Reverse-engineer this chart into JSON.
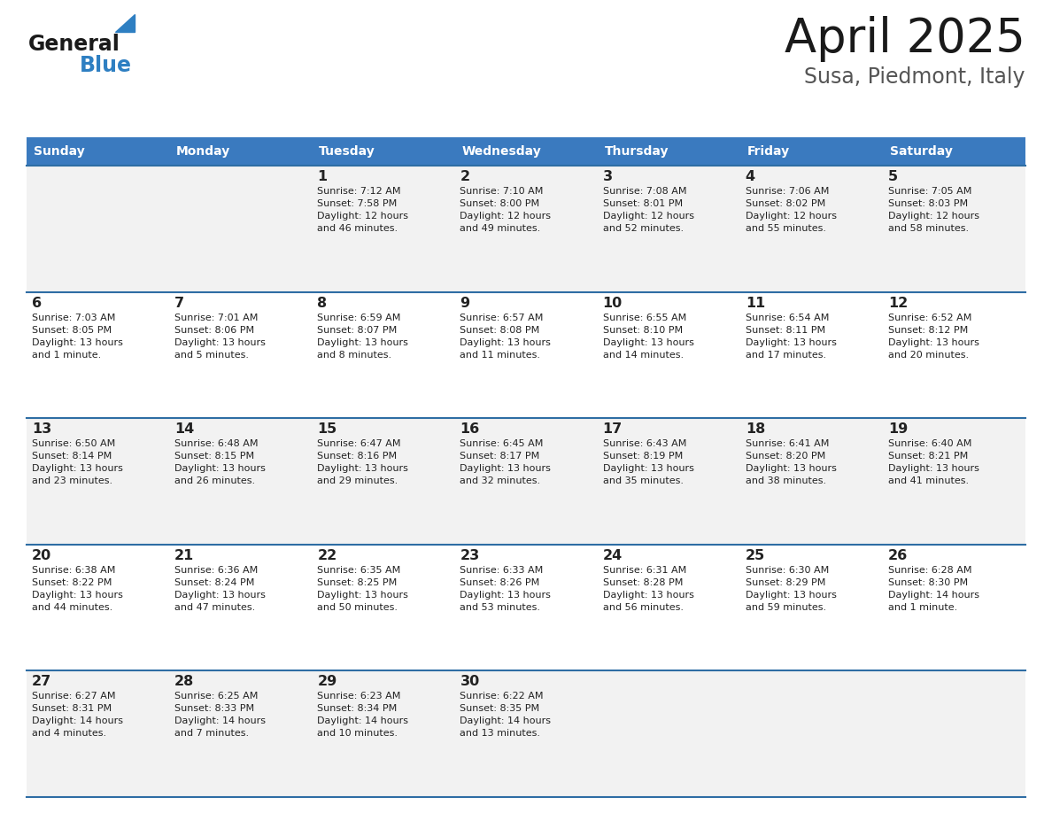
{
  "title": "April 2025",
  "subtitle": "Susa, Piedmont, Italy",
  "header_bg": "#3a7abf",
  "header_text_color": "#ffffff",
  "days_of_week": [
    "Sunday",
    "Monday",
    "Tuesday",
    "Wednesday",
    "Thursday",
    "Friday",
    "Saturday"
  ],
  "row_bg_even": "#f2f2f2",
  "row_bg_odd": "#ffffff",
  "divider_color": "#2e6da4",
  "text_color": "#222222",
  "calendar": [
    [
      {
        "day": null,
        "info": null
      },
      {
        "day": null,
        "info": null
      },
      {
        "day": 1,
        "info": "Sunrise: 7:12 AM\nSunset: 7:58 PM\nDaylight: 12 hours\nand 46 minutes."
      },
      {
        "day": 2,
        "info": "Sunrise: 7:10 AM\nSunset: 8:00 PM\nDaylight: 12 hours\nand 49 minutes."
      },
      {
        "day": 3,
        "info": "Sunrise: 7:08 AM\nSunset: 8:01 PM\nDaylight: 12 hours\nand 52 minutes."
      },
      {
        "day": 4,
        "info": "Sunrise: 7:06 AM\nSunset: 8:02 PM\nDaylight: 12 hours\nand 55 minutes."
      },
      {
        "day": 5,
        "info": "Sunrise: 7:05 AM\nSunset: 8:03 PM\nDaylight: 12 hours\nand 58 minutes."
      }
    ],
    [
      {
        "day": 6,
        "info": "Sunrise: 7:03 AM\nSunset: 8:05 PM\nDaylight: 13 hours\nand 1 minute."
      },
      {
        "day": 7,
        "info": "Sunrise: 7:01 AM\nSunset: 8:06 PM\nDaylight: 13 hours\nand 5 minutes."
      },
      {
        "day": 8,
        "info": "Sunrise: 6:59 AM\nSunset: 8:07 PM\nDaylight: 13 hours\nand 8 minutes."
      },
      {
        "day": 9,
        "info": "Sunrise: 6:57 AM\nSunset: 8:08 PM\nDaylight: 13 hours\nand 11 minutes."
      },
      {
        "day": 10,
        "info": "Sunrise: 6:55 AM\nSunset: 8:10 PM\nDaylight: 13 hours\nand 14 minutes."
      },
      {
        "day": 11,
        "info": "Sunrise: 6:54 AM\nSunset: 8:11 PM\nDaylight: 13 hours\nand 17 minutes."
      },
      {
        "day": 12,
        "info": "Sunrise: 6:52 AM\nSunset: 8:12 PM\nDaylight: 13 hours\nand 20 minutes."
      }
    ],
    [
      {
        "day": 13,
        "info": "Sunrise: 6:50 AM\nSunset: 8:14 PM\nDaylight: 13 hours\nand 23 minutes."
      },
      {
        "day": 14,
        "info": "Sunrise: 6:48 AM\nSunset: 8:15 PM\nDaylight: 13 hours\nand 26 minutes."
      },
      {
        "day": 15,
        "info": "Sunrise: 6:47 AM\nSunset: 8:16 PM\nDaylight: 13 hours\nand 29 minutes."
      },
      {
        "day": 16,
        "info": "Sunrise: 6:45 AM\nSunset: 8:17 PM\nDaylight: 13 hours\nand 32 minutes."
      },
      {
        "day": 17,
        "info": "Sunrise: 6:43 AM\nSunset: 8:19 PM\nDaylight: 13 hours\nand 35 minutes."
      },
      {
        "day": 18,
        "info": "Sunrise: 6:41 AM\nSunset: 8:20 PM\nDaylight: 13 hours\nand 38 minutes."
      },
      {
        "day": 19,
        "info": "Sunrise: 6:40 AM\nSunset: 8:21 PM\nDaylight: 13 hours\nand 41 minutes."
      }
    ],
    [
      {
        "day": 20,
        "info": "Sunrise: 6:38 AM\nSunset: 8:22 PM\nDaylight: 13 hours\nand 44 minutes."
      },
      {
        "day": 21,
        "info": "Sunrise: 6:36 AM\nSunset: 8:24 PM\nDaylight: 13 hours\nand 47 minutes."
      },
      {
        "day": 22,
        "info": "Sunrise: 6:35 AM\nSunset: 8:25 PM\nDaylight: 13 hours\nand 50 minutes."
      },
      {
        "day": 23,
        "info": "Sunrise: 6:33 AM\nSunset: 8:26 PM\nDaylight: 13 hours\nand 53 minutes."
      },
      {
        "day": 24,
        "info": "Sunrise: 6:31 AM\nSunset: 8:28 PM\nDaylight: 13 hours\nand 56 minutes."
      },
      {
        "day": 25,
        "info": "Sunrise: 6:30 AM\nSunset: 8:29 PM\nDaylight: 13 hours\nand 59 minutes."
      },
      {
        "day": 26,
        "info": "Sunrise: 6:28 AM\nSunset: 8:30 PM\nDaylight: 14 hours\nand 1 minute."
      }
    ],
    [
      {
        "day": 27,
        "info": "Sunrise: 6:27 AM\nSunset: 8:31 PM\nDaylight: 14 hours\nand 4 minutes."
      },
      {
        "day": 28,
        "info": "Sunrise: 6:25 AM\nSunset: 8:33 PM\nDaylight: 14 hours\nand 7 minutes."
      },
      {
        "day": 29,
        "info": "Sunrise: 6:23 AM\nSunset: 8:34 PM\nDaylight: 14 hours\nand 10 minutes."
      },
      {
        "day": 30,
        "info": "Sunrise: 6:22 AM\nSunset: 8:35 PM\nDaylight: 14 hours\nand 13 minutes."
      },
      {
        "day": null,
        "info": null
      },
      {
        "day": null,
        "info": null
      },
      {
        "day": null,
        "info": null
      }
    ]
  ],
  "logo_general_color": "#1a1a1a",
  "logo_blue_color": "#2e7fc2",
  "title_color": "#1a1a1a",
  "subtitle_color": "#555555",
  "fig_width": 11.88,
  "fig_height": 9.18,
  "dpi": 100
}
